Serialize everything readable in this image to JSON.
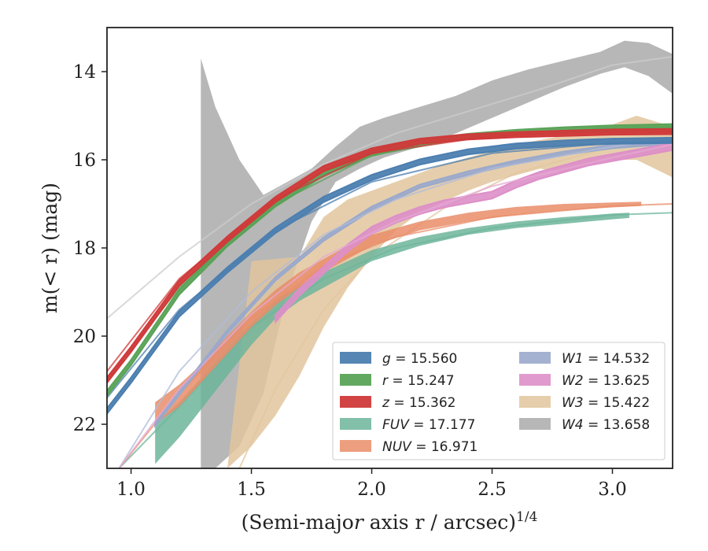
{
  "chart_data": {
    "type": "line",
    "xlabel": "(Semi-major axis r / arcsec)",
    "xlabel_var": "r",
    "xlabel_exp": "1/4",
    "ylabel": "m(< r) (mag)",
    "xlim": [
      0.9,
      3.25
    ],
    "ylim": [
      23.0,
      13.0
    ],
    "y_inverted": true,
    "grid": false,
    "legend_position": "lower-right",
    "x_ticks": [
      1.0,
      1.5,
      2.0,
      2.5,
      3.0
    ],
    "x_tick_labels": [
      "1.0",
      "1.5",
      "2.0",
      "2.5",
      "3.0"
    ],
    "y_ticks": [
      14,
      16,
      18,
      20,
      22
    ],
    "y_tick_labels": [
      "14",
      "16",
      "18",
      "20",
      "22"
    ],
    "series": [
      {
        "name": "g",
        "label": "g = 15.560",
        "color": "#4c7fb0",
        "fill_opacity": 0.95,
        "x": [
          0.9,
          1.0,
          1.2,
          1.4,
          1.6,
          1.8,
          2.0,
          2.2,
          2.4,
          2.6,
          2.8,
          3.0,
          3.25
        ],
        "y": [
          21.7,
          21.0,
          19.5,
          18.5,
          17.6,
          16.9,
          16.4,
          16.05,
          15.82,
          15.69,
          15.62,
          15.58,
          15.56
        ],
        "band": 0.06,
        "model": {
          "color": "#4c7fb0",
          "x": [
            0.9,
            1.2,
            1.6,
            2.0,
            2.5,
            3.0,
            3.25
          ],
          "y": [
            21.4,
            19.4,
            17.6,
            16.5,
            15.85,
            15.62,
            15.58
          ]
        }
      },
      {
        "name": "r",
        "label": "r = 15.247",
        "color": "#5aa358",
        "fill_opacity": 0.95,
        "x": [
          0.9,
          1.0,
          1.2,
          1.4,
          1.6,
          1.8,
          2.0,
          2.2,
          2.4,
          2.6,
          2.8,
          3.0,
          3.25
        ],
        "y": [
          21.3,
          20.6,
          19.0,
          17.9,
          17.0,
          16.3,
          15.85,
          15.6,
          15.47,
          15.38,
          15.32,
          15.28,
          15.25
        ],
        "band": 0.06,
        "model": {
          "color": "#5aa358",
          "x": [
            0.9,
            1.2,
            1.6,
            2.0,
            2.5,
            3.0,
            3.25
          ],
          "y": [
            21.0,
            18.9,
            17.0,
            15.9,
            15.4,
            15.29,
            15.26
          ]
        }
      },
      {
        "name": "z",
        "label": "z = 15.362",
        "color": "#d03a3a",
        "fill_opacity": 0.95,
        "x": [
          0.9,
          1.0,
          1.2,
          1.4,
          1.6,
          1.8,
          2.0,
          2.2,
          2.4,
          2.6,
          2.8,
          3.0,
          3.25
        ],
        "y": [
          21.0,
          20.3,
          18.8,
          17.8,
          16.9,
          16.2,
          15.8,
          15.58,
          15.48,
          15.43,
          15.4,
          15.37,
          15.36
        ],
        "band": 0.06,
        "model": {
          "color": "#d03a3a",
          "x": [
            0.9,
            1.2,
            1.6,
            2.0,
            2.5,
            3.0,
            3.25
          ],
          "y": [
            20.8,
            18.7,
            16.9,
            15.85,
            15.46,
            15.38,
            15.36
          ]
        }
      },
      {
        "name": "FUV",
        "label": "FUV = 17.177",
        "color": "#6db59b",
        "fill_opacity": 0.85,
        "x": [
          1.1,
          1.2,
          1.3,
          1.4,
          1.5,
          1.6,
          1.7,
          1.8,
          1.9,
          2.0,
          2.2,
          2.4,
          2.6,
          2.8,
          3.0,
          3.07
        ],
        "y_low": [
          22.9,
          22.3,
          21.6,
          20.9,
          20.2,
          19.6,
          19.2,
          18.9,
          18.6,
          18.3,
          17.95,
          17.7,
          17.55,
          17.45,
          17.35,
          17.32
        ],
        "y_high": [
          22.0,
          21.5,
          20.9,
          20.3,
          19.7,
          19.2,
          18.85,
          18.55,
          18.3,
          18.05,
          17.75,
          17.55,
          17.4,
          17.3,
          17.22,
          17.2
        ],
        "model": {
          "color": "#6db59b",
          "x": [
            0.95,
            1.2,
            1.5,
            1.8,
            2.1,
            2.5,
            3.0,
            3.25
          ],
          "y": [
            23.0,
            21.6,
            19.8,
            18.7,
            18.0,
            17.55,
            17.25,
            17.2
          ]
        }
      },
      {
        "name": "NUV",
        "label": "NUV = 16.971",
        "color": "#e98d69",
        "fill_opacity": 0.85,
        "x": [
          1.1,
          1.2,
          1.3,
          1.4,
          1.5,
          1.6,
          1.7,
          1.8,
          1.9,
          2.0,
          2.2,
          2.4,
          2.6,
          2.8,
          3.0,
          3.12
        ],
        "y_low": [
          22.0,
          21.6,
          21.0,
          20.4,
          19.8,
          19.3,
          18.9,
          18.55,
          18.25,
          17.95,
          17.6,
          17.4,
          17.25,
          17.15,
          17.08,
          17.05
        ],
        "y_high": [
          21.5,
          21.1,
          20.6,
          20.0,
          19.45,
          18.95,
          18.55,
          18.25,
          17.95,
          17.7,
          17.4,
          17.2,
          17.07,
          17.0,
          16.97,
          16.95
        ],
        "model": {
          "color": "#e98d69",
          "x": [
            0.95,
            1.2,
            1.5,
            1.8,
            2.1,
            2.5,
            3.0,
            3.25
          ],
          "y": [
            23.0,
            21.3,
            19.6,
            18.4,
            17.75,
            17.3,
            17.05,
            17.0
          ]
        }
      },
      {
        "name": "W1",
        "label": "W1 = 14.532",
        "color": "#9aa9cc",
        "fill_opacity": 0.9,
        "x": [
          1.1,
          1.2,
          1.4,
          1.6,
          1.8,
          2.0,
          2.2,
          2.4,
          2.6,
          2.8,
          3.0,
          3.25
        ],
        "y": [
          22.0,
          21.3,
          19.9,
          18.7,
          17.8,
          17.1,
          16.6,
          16.3,
          16.05,
          15.85,
          15.7,
          15.6
        ],
        "band": 0.04,
        "model": {
          "color": "#b0bcd8",
          "x": [
            0.95,
            1.2,
            1.5,
            1.8,
            2.1,
            2.5,
            3.0,
            3.25
          ],
          "y": [
            23.0,
            20.8,
            19.0,
            17.7,
            16.9,
            16.2,
            15.7,
            15.5
          ]
        }
      },
      {
        "name": "W2",
        "label": "W2 = 13.625",
        "color": "#dd8fc8",
        "fill_opacity": 0.9,
        "x": [
          1.6,
          1.7,
          1.8,
          1.9,
          2.0,
          2.1,
          2.2,
          2.3,
          2.4,
          2.5,
          2.6,
          2.7,
          2.8,
          2.9,
          3.0,
          3.1,
          3.25
        ],
        "y": [
          19.6,
          19.0,
          18.5,
          18.0,
          17.6,
          17.35,
          17.15,
          17.0,
          16.9,
          16.8,
          16.55,
          16.35,
          16.2,
          16.05,
          15.95,
          15.85,
          15.7
        ],
        "band": 0.08,
        "model": {
          "color": "#e4a8d3",
          "x": [
            0.95,
            1.2,
            1.5,
            1.8,
            2.1,
            2.5,
            3.0,
            3.25
          ],
          "y": [
            23.0,
            21.2,
            19.5,
            18.2,
            17.4,
            16.6,
            15.95,
            15.65
          ]
        }
      },
      {
        "name": "W3",
        "label": "W3 = 15.422",
        "color": "#e2c69d",
        "fill_opacity": 0.85,
        "x": [
          1.4,
          1.5,
          1.6,
          1.7,
          1.8,
          1.9,
          2.0,
          2.1,
          2.2,
          2.3,
          2.4,
          2.5,
          2.6,
          2.7,
          2.8,
          2.9,
          3.0,
          3.1,
          3.25
        ],
        "y_low": [
          23.0,
          22.5,
          21.8,
          20.9,
          19.8,
          18.9,
          18.2,
          17.6,
          17.2,
          16.95,
          16.7,
          16.5,
          16.35,
          16.2,
          16.3,
          16.1,
          16.0,
          16.0,
          16.4
        ],
        "y_high": [
          23.0,
          18.3,
          18.25,
          18.2,
          17.3,
          16.9,
          16.7,
          16.5,
          16.3,
          16.1,
          15.95,
          15.8,
          15.65,
          15.55,
          15.45,
          15.3,
          15.2,
          15.0,
          15.25
        ],
        "model": {
          "color": "#e2c69d",
          "x": [
            1.45,
            1.6,
            1.8,
            2.0,
            2.3,
            2.6,
            3.0,
            3.25
          ],
          "y": [
            23.0,
            21.2,
            19.4,
            18.2,
            17.1,
            16.3,
            15.7,
            15.45
          ]
        }
      },
      {
        "name": "W4",
        "label": "W4 = 13.658",
        "color": "#b3b3b3",
        "fill_opacity": 0.95,
        "x": [
          1.29,
          1.35,
          1.45,
          1.55,
          1.65,
          1.75,
          1.85,
          1.95,
          2.05,
          2.2,
          2.35,
          2.5,
          2.65,
          2.8,
          2.95,
          3.05,
          3.15,
          3.25
        ],
        "y_low": [
          23.0,
          23.0,
          22.5,
          21.3,
          19.0,
          17.4,
          16.5,
          16.2,
          15.95,
          15.7,
          15.4,
          15.05,
          14.7,
          14.35,
          14.05,
          13.9,
          14.1,
          14.5
        ],
        "y_high": [
          13.7,
          14.8,
          16.0,
          16.8,
          16.5,
          16.2,
          15.7,
          15.25,
          15.05,
          14.8,
          14.55,
          14.2,
          13.95,
          13.75,
          13.55,
          13.3,
          13.35,
          13.6
        ],
        "model": {
          "color": "#cccccc",
          "x": [
            0.9,
            1.2,
            1.5,
            1.8,
            2.1,
            2.4,
            2.7,
            3.0,
            3.25
          ],
          "y": [
            19.6,
            18.2,
            17.0,
            16.1,
            15.4,
            14.9,
            14.4,
            13.85,
            13.66
          ]
        }
      }
    ]
  }
}
